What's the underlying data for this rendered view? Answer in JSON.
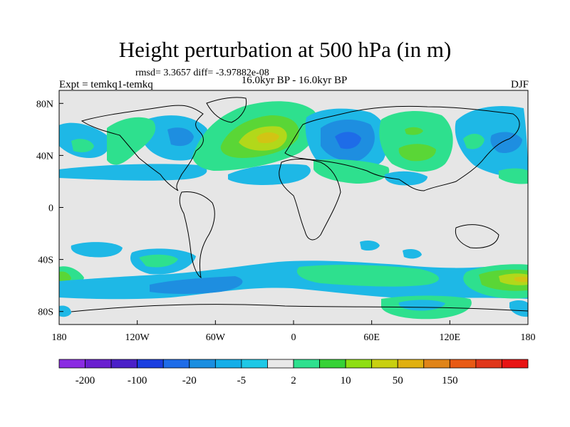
{
  "title": "Height perturbation at 500 hPa (in m)",
  "stats": "rmsd= 3.3657 diff= -3.97882e-08",
  "left_label": "Expt = temkq1-temkq",
  "center_label": "16.0kyr BP - 16.0kyr BP",
  "right_label": "DJF",
  "axes": {
    "lon_range": [
      -180,
      180
    ],
    "lat_range": [
      -90,
      90
    ],
    "x_ticks": [
      {
        "value": -180,
        "label": "180"
      },
      {
        "value": -120,
        "label": "120W"
      },
      {
        "value": -60,
        "label": "60W"
      },
      {
        "value": 0,
        "label": "0"
      },
      {
        "value": 60,
        "label": "60E"
      },
      {
        "value": 120,
        "label": "120E"
      },
      {
        "value": 180,
        "label": "180"
      }
    ],
    "y_ticks": [
      {
        "value": 80,
        "label": "80N"
      },
      {
        "value": 40,
        "label": "40N"
      },
      {
        "value": 0,
        "label": "0"
      },
      {
        "value": -40,
        "label": "40S"
      },
      {
        "value": -80,
        "label": "80S"
      }
    ]
  },
  "colorbar": {
    "colors": [
      "#8a2be2",
      "#6a1fd0",
      "#4b20c8",
      "#1a3ee0",
      "#1e6ce8",
      "#1a8ee0",
      "#14aee8",
      "#1ec8e6",
      "#e8e8e8",
      "#2ee08e",
      "#36d236",
      "#8ede12",
      "#c8d010",
      "#e0b010",
      "#e08418",
      "#e85a14",
      "#e0361a",
      "#e81414"
    ],
    "labels": [
      {
        "index": 1,
        "text": "-200"
      },
      {
        "index": 3,
        "text": "-100"
      },
      {
        "index": 5,
        "text": "-20"
      },
      {
        "index": 7,
        "text": "-5"
      },
      {
        "index": 9,
        "text": "2"
      },
      {
        "index": 11,
        "text": "10"
      },
      {
        "index": 13,
        "text": "50"
      },
      {
        "index": 15,
        "text": "150"
      }
    ]
  }
}
